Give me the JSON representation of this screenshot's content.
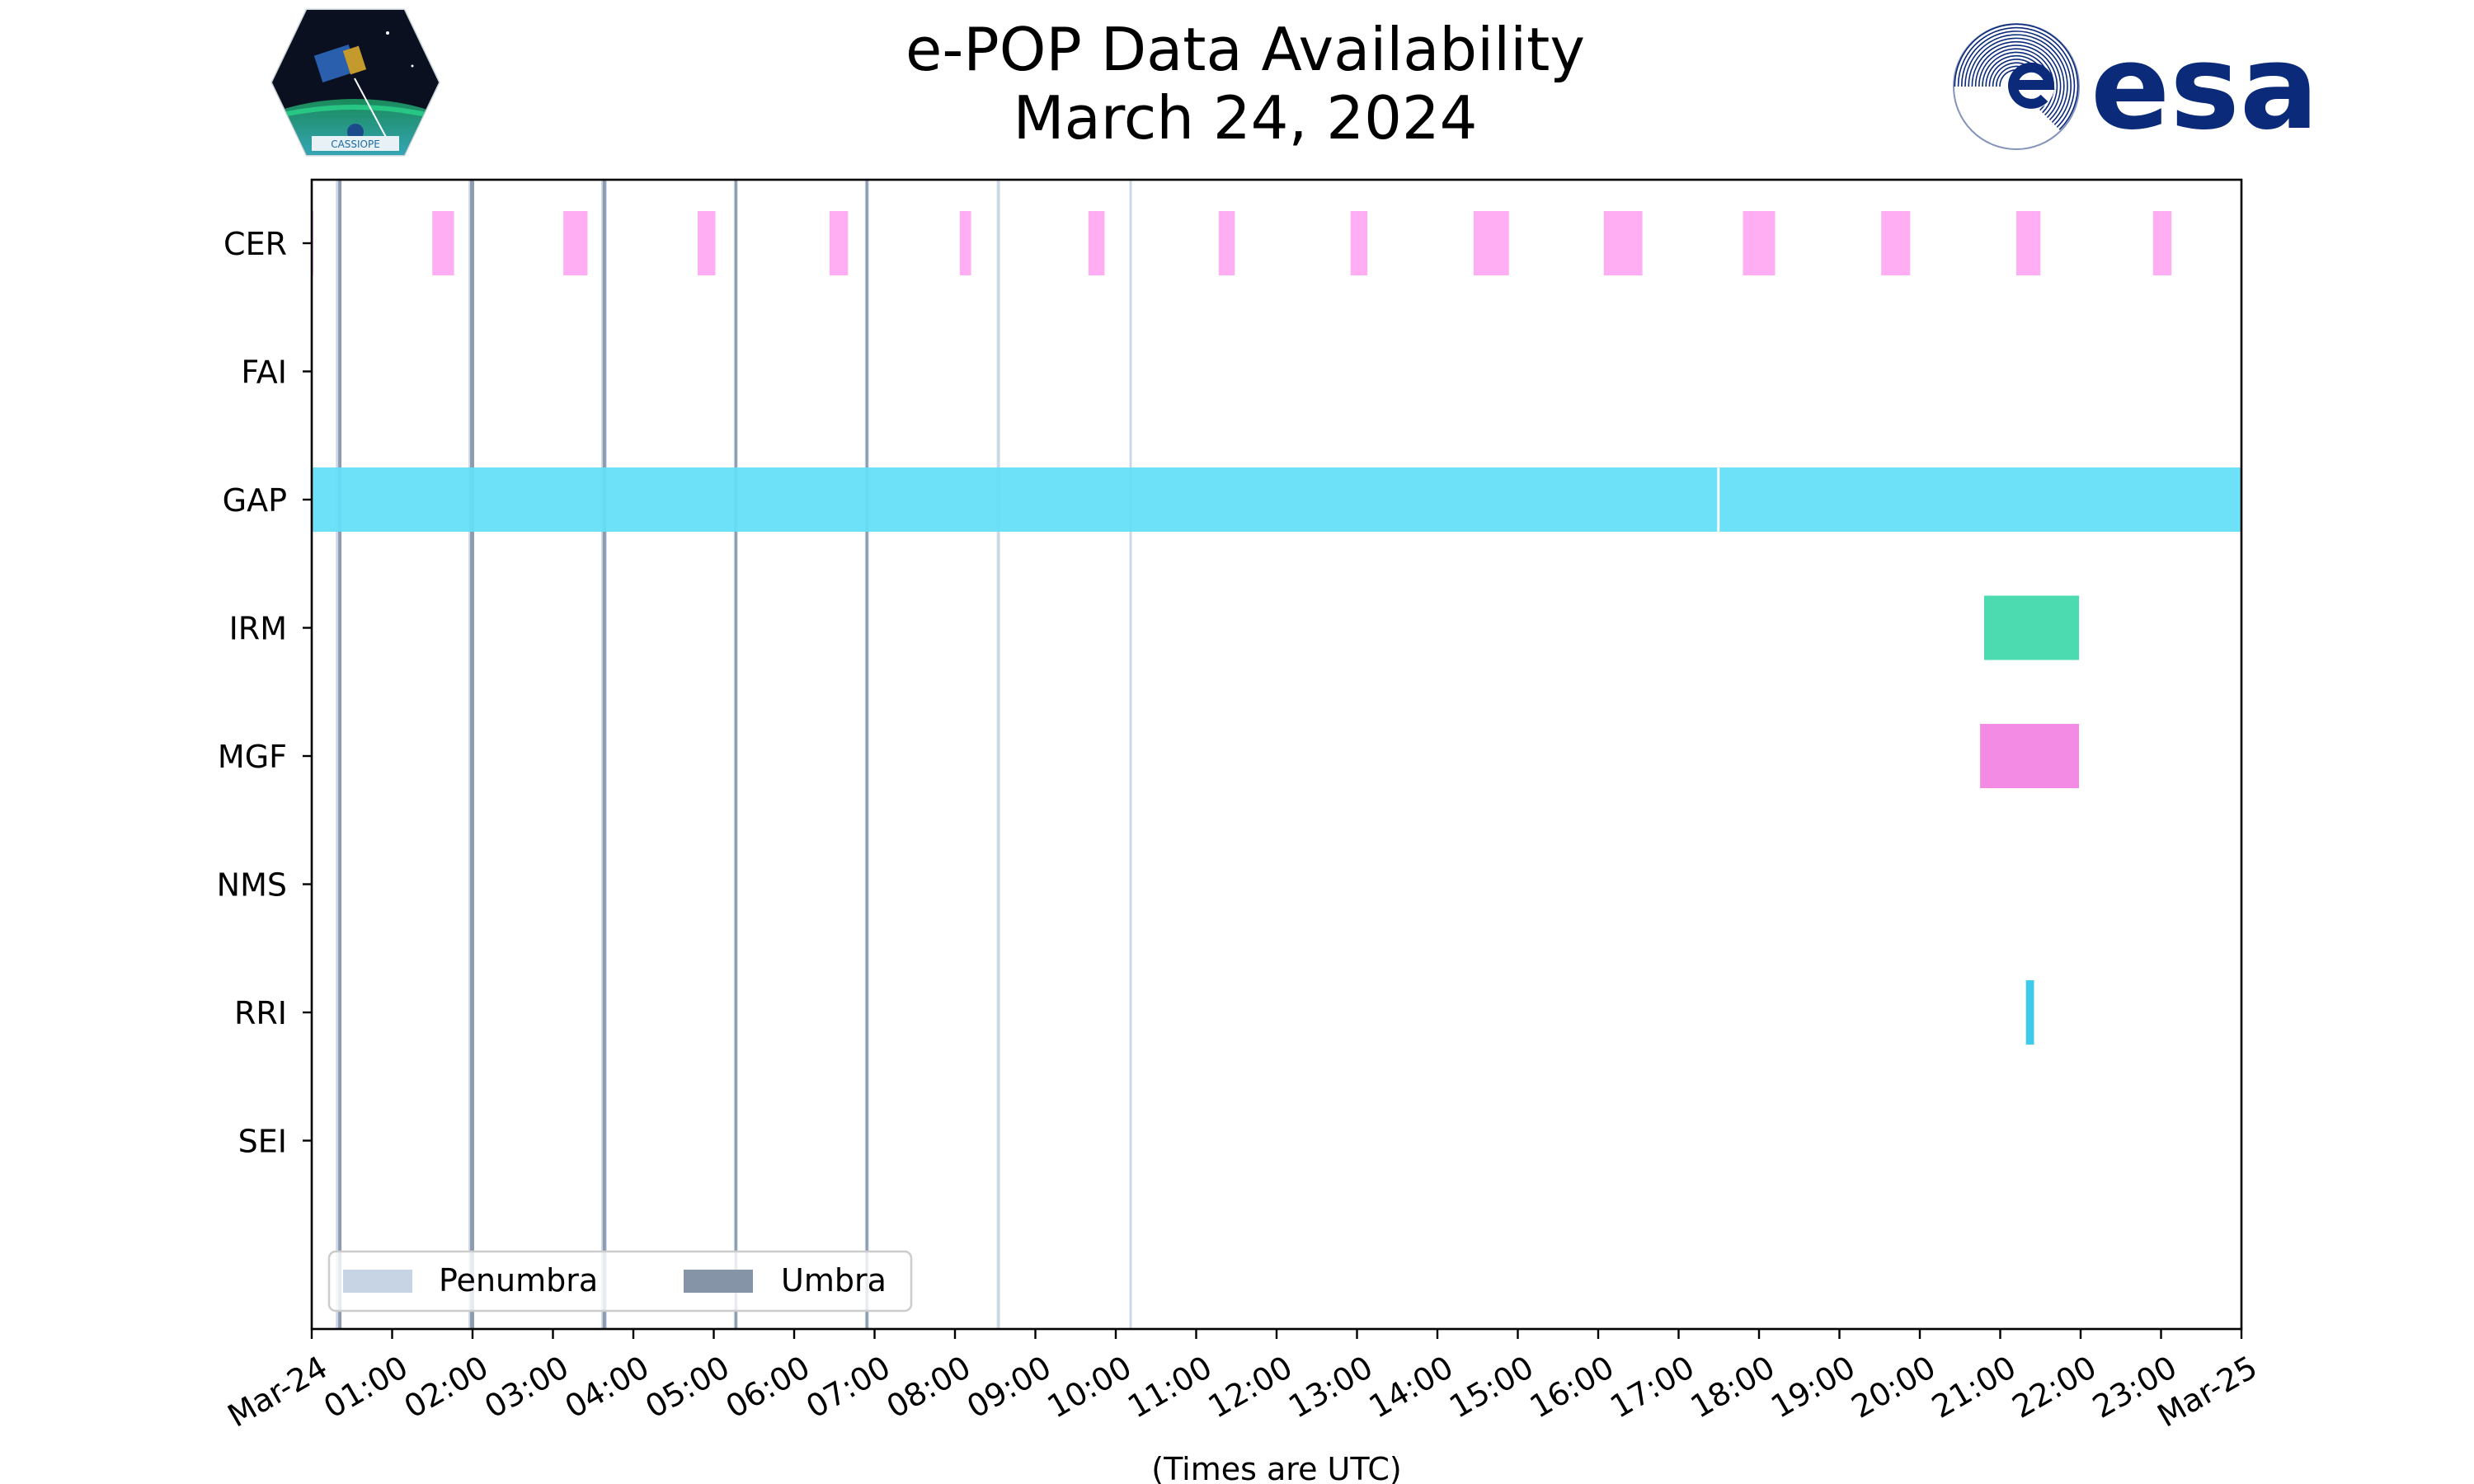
{
  "header": {
    "title_line1": "e-POP Data Availability",
    "title_line2": "March 24, 2024",
    "left_logo": {
      "icon": "cassiope-mission-patch",
      "text": "CASSIOPE"
    },
    "right_logo": {
      "icon": "esa-logo",
      "text": "esa",
      "color": "#0b2a7a"
    }
  },
  "chart_data": {
    "type": "timeline",
    "title": "e-POP Data Availability\nMarch 24, 2024",
    "xlabel": "(Times are UTC)",
    "ylabel": "",
    "x_unit": "hours UTC on 2024-03-24",
    "xlim": [
      0,
      24
    ],
    "x_ticks": [
      {
        "value": 0,
        "label": "Mar-24"
      },
      {
        "value": 1,
        "label": "01:00"
      },
      {
        "value": 2,
        "label": "02:00"
      },
      {
        "value": 3,
        "label": "03:00"
      },
      {
        "value": 4,
        "label": "04:00"
      },
      {
        "value": 5,
        "label": "05:00"
      },
      {
        "value": 6,
        "label": "06:00"
      },
      {
        "value": 7,
        "label": "07:00"
      },
      {
        "value": 8,
        "label": "08:00"
      },
      {
        "value": 9,
        "label": "09:00"
      },
      {
        "value": 10,
        "label": "10:00"
      },
      {
        "value": 11,
        "label": "11:00"
      },
      {
        "value": 12,
        "label": "12:00"
      },
      {
        "value": 13,
        "label": "13:00"
      },
      {
        "value": 14,
        "label": "14:00"
      },
      {
        "value": 15,
        "label": "15:00"
      },
      {
        "value": 16,
        "label": "16:00"
      },
      {
        "value": 17,
        "label": "17:00"
      },
      {
        "value": 18,
        "label": "18:00"
      },
      {
        "value": 19,
        "label": "19:00"
      },
      {
        "value": 20,
        "label": "20:00"
      },
      {
        "value": 21,
        "label": "21:00"
      },
      {
        "value": 22,
        "label": "22:00"
      },
      {
        "value": 23,
        "label": "23:00"
      },
      {
        "value": 24,
        "label": "Mar-25"
      }
    ],
    "categories": [
      "CER",
      "FAI",
      "GAP",
      "IRM",
      "MGF",
      "NMS",
      "RRI",
      "SEI"
    ],
    "series": [
      {
        "instrument": "CER",
        "color": "#ffaaf2",
        "intervals": [
          [
            0,
            0.01
          ],
          [
            1.5,
            1.77
          ],
          [
            3.13,
            3.43
          ],
          [
            4.8,
            5.02
          ],
          [
            6.44,
            6.67
          ],
          [
            8.06,
            8.2
          ],
          [
            9.66,
            9.86
          ],
          [
            11.28,
            11.48
          ],
          [
            12.92,
            13.13
          ],
          [
            14.45,
            14.89
          ],
          [
            16.07,
            16.55
          ],
          [
            17.8,
            18.2
          ],
          [
            19.52,
            19.88
          ],
          [
            21.2,
            21.5
          ],
          [
            22.9,
            23.13
          ]
        ]
      },
      {
        "instrument": "FAI",
        "color": "#f58ee4",
        "intervals": []
      },
      {
        "instrument": "GAP",
        "color": "#64dff8",
        "intervals": [
          [
            0,
            17.48
          ],
          [
            17.51,
            24
          ]
        ]
      },
      {
        "instrument": "IRM",
        "color": "#42d9ad",
        "intervals": [
          [
            20.8,
            21.98
          ]
        ]
      },
      {
        "instrument": "MGF",
        "color": "#f284e2",
        "intervals": [
          [
            20.75,
            21.98
          ]
        ]
      },
      {
        "instrument": "NMS",
        "color": "#42d9ad",
        "intervals": []
      },
      {
        "instrument": "RRI",
        "color": "#33c7ea",
        "intervals": [
          [
            21.32,
            21.42
          ]
        ]
      },
      {
        "instrument": "SEI",
        "color": "#42d9ad",
        "intervals": []
      }
    ],
    "eclipse": {
      "penumbra_color": "#c6d4e4",
      "umbra_color": "#8595a7",
      "penumbra_intervals": [
        [
          0.3,
          0.37
        ],
        [
          1.95,
          2.02
        ],
        [
          3.6,
          3.67
        ],
        [
          5.25,
          5.3
        ],
        [
          6.88,
          6.93
        ],
        [
          8.52,
          8.56
        ],
        [
          10.17,
          10.2
        ]
      ],
      "umbra_intervals": [
        [
          0.33,
          0.37
        ],
        [
          1.97,
          2.02
        ],
        [
          3.62,
          3.66
        ],
        [
          5.26,
          5.29
        ],
        [
          6.89,
          6.92
        ]
      ]
    },
    "legend": {
      "placement": "lower-left",
      "entries": [
        {
          "label": "Penumbra",
          "color": "#c6d4e4"
        },
        {
          "label": "Umbra",
          "color": "#8595a7"
        }
      ]
    },
    "grid": false
  }
}
